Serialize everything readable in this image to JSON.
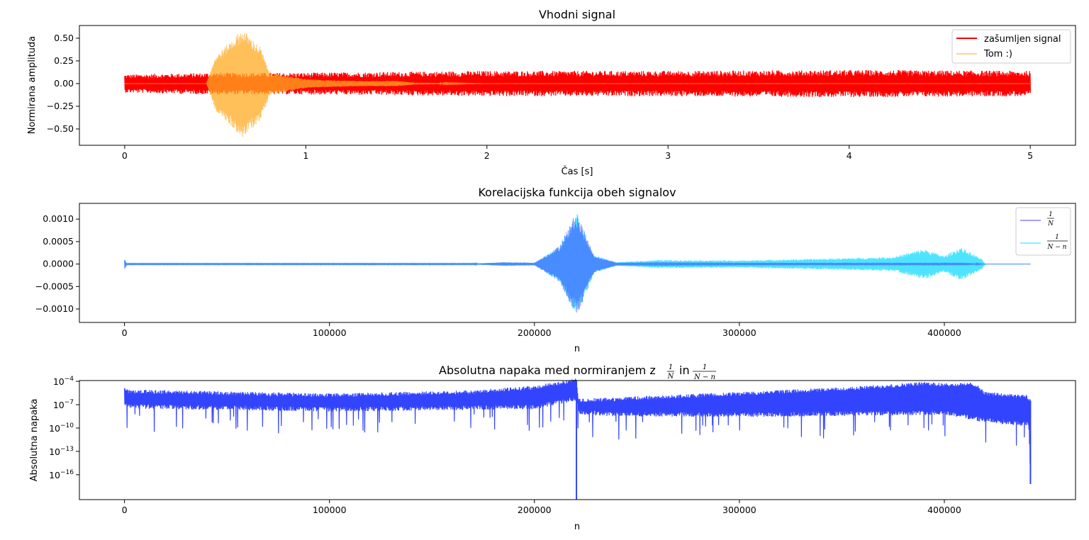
{
  "chart_data": [
    {
      "type": "line",
      "title": "Vhodni signal",
      "xlabel": "Čas [s]",
      "ylabel": "Normirana amplituda",
      "xlim": [
        -0.25,
        5.25
      ],
      "ylim": [
        -0.68,
        0.64
      ],
      "xticks": [
        0,
        1,
        2,
        3,
        4,
        5
      ],
      "xtick_labels": [
        "0",
        "1",
        "2",
        "3",
        "4",
        "5"
      ],
      "yticks": [
        -0.5,
        -0.25,
        0.0,
        0.25,
        0.5
      ],
      "ytick_labels": [
        "−0.50",
        "−0.25",
        "0.00",
        "0.25",
        "0.50"
      ],
      "legend_position": "top-right",
      "series": [
        {
          "name": "zašumljen signal",
          "color": "#ff0000",
          "x_range": [
            0,
            5
          ],
          "envelope_x": [
            0,
            0.5,
            1.0,
            2.0,
            3.0,
            4.0,
            5.0
          ],
          "envelope_amp": [
            0.1,
            0.12,
            0.12,
            0.14,
            0.14,
            0.15,
            0.14
          ]
        },
        {
          "name": "Tom :)",
          "color": "#ffaa22",
          "x_range": [
            0,
            5
          ],
          "envelope_x": [
            0,
            0.45,
            0.5,
            0.6,
            0.65,
            0.75,
            0.8,
            1.0,
            1.1,
            1.3,
            1.5,
            1.6,
            2.0,
            5.0
          ],
          "envelope_amp": [
            0.0,
            0.0,
            0.3,
            0.5,
            0.6,
            0.4,
            0.12,
            0.05,
            0.04,
            0.03,
            0.03,
            0.01,
            0.0,
            0.0
          ]
        }
      ]
    },
    {
      "type": "line",
      "title": "Korelacijska funkcija obeh signalov",
      "xlabel": "n",
      "ylabel": "",
      "xlim": [
        -22000,
        464000
      ],
      "ylim": [
        -0.0013,
        0.00135
      ],
      "xticks": [
        0,
        100000,
        200000,
        300000,
        400000
      ],
      "xtick_labels": [
        "0",
        "100000",
        "200000",
        "300000",
        "400000"
      ],
      "yticks": [
        -0.001,
        -0.0005,
        0.0,
        0.0005,
        0.001
      ],
      "ytick_labels": [
        "−0.0010",
        "−0.0005",
        "0.0000",
        "0.0005",
        "0.0010"
      ],
      "legend_position": "top-right",
      "series": [
        {
          "name": "1/N",
          "color": "#4444ff",
          "x_range": [
            0,
            442000
          ],
          "envelope_x": [
            0,
            1000,
            170000,
            185000,
            200000,
            212000,
            220500,
            229000,
            240000,
            260000,
            300000,
            350000,
            390000,
            410000,
            420000,
            442000
          ],
          "envelope_amp": [
            0.00012,
            1e-05,
            1e-05,
            4e-05,
            3e-05,
            0.0004,
            0.00118,
            0.0002,
            3e-05,
            4e-05,
            3e-05,
            3e-05,
            3e-05,
            3e-05,
            0.0,
            0.0
          ]
        },
        {
          "name": "1/(N−n)",
          "color": "#22ddff",
          "x_range": [
            0,
            442000
          ],
          "envelope_x": [
            0,
            1000,
            170000,
            185000,
            200000,
            212000,
            220500,
            229000,
            240000,
            260000,
            300000,
            350000,
            375000,
            390000,
            400000,
            408000,
            418000,
            420000,
            442000
          ],
          "envelope_amp": [
            0.00012,
            1e-05,
            1e-05,
            4e-05,
            3e-05,
            0.0004,
            0.00118,
            0.0002,
            4e-05,
            9e-05,
            8e-05,
            0.00013,
            0.00016,
            0.00034,
            0.00018,
            0.00038,
            0.00012,
            0.0,
            0.0
          ]
        }
      ]
    },
    {
      "type": "line",
      "title": "Absolutna napaka med normiranjem z 1/N in 1/(N−n)",
      "xlabel": "n",
      "ylabel": "Absolutna napaka",
      "xlim": [
        -22000,
        464000
      ],
      "yscale": "log",
      "ylim_exp": [
        -19.2,
        -3.9
      ],
      "xticks": [
        0,
        100000,
        200000,
        300000,
        400000
      ],
      "xtick_labels": [
        "0",
        "100000",
        "200000",
        "300000",
        "400000"
      ],
      "yticks_exp": [
        -4,
        -7,
        -10,
        -13,
        -16
      ],
      "ytick_base": "10",
      "ytick_exponents": [
        "−4",
        "−7",
        "−10",
        "−13",
        "−16"
      ],
      "series": [
        {
          "name": "",
          "color": "#3344ff",
          "x_range": [
            0,
            442000
          ],
          "upper_x": [
            0,
            2000,
            100000,
            170000,
            200000,
            220500,
            221500,
            240000,
            300000,
            350000,
            390000,
            400000,
            415000,
            420000,
            440000,
            442000
          ],
          "upper_exp": [
            -4.8,
            -5.3,
            -5.8,
            -5.4,
            -4.8,
            -3.9,
            -6.5,
            -6.3,
            -5.6,
            -5.0,
            -4.3,
            -4.5,
            -4.4,
            -5.6,
            -6.0,
            -6.5
          ],
          "lower_x": [
            0,
            100000,
            200000,
            220500,
            221500,
            240000,
            300000,
            400000,
            420000,
            441000,
            442000
          ],
          "lower_exp": [
            -7.2,
            -7.6,
            -7.3,
            -6.2,
            -8.0,
            -8.2,
            -8.3,
            -8.0,
            -9.0,
            -9.5,
            -17.0
          ]
        }
      ]
    }
  ]
}
